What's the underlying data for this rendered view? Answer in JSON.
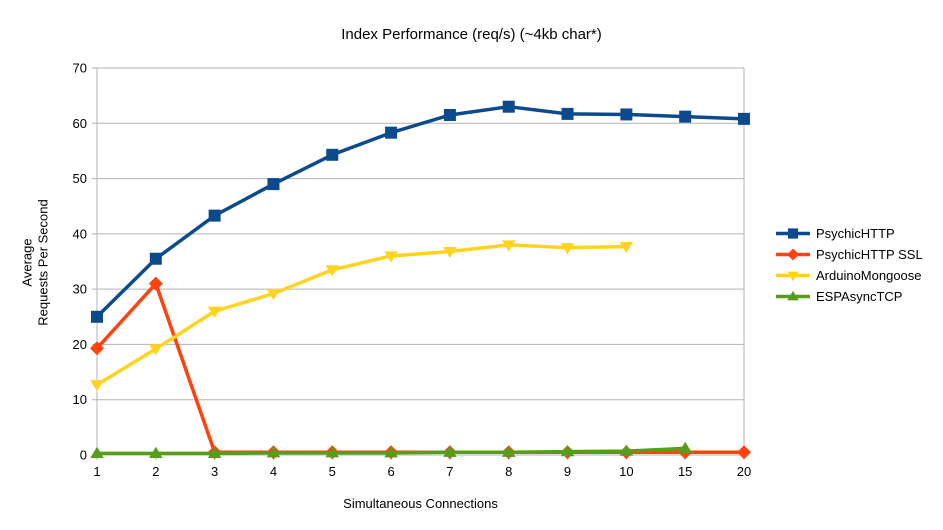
{
  "chart_data": {
    "type": "line",
    "title": "Index Performance (req/s) (~4kb char*)",
    "xlabel": "Simultaneous Connections",
    "ylabel": "Average\nRequests Per Second",
    "categories": [
      "1",
      "2",
      "3",
      "4",
      "5",
      "6",
      "7",
      "8",
      "9",
      "10",
      "15",
      "20"
    ],
    "ylim": [
      0,
      70
    ],
    "yticks": [
      0,
      10,
      20,
      30,
      40,
      50,
      60,
      70
    ],
    "grid": "horizontal",
    "gridline_color": "#b3b3b3",
    "legend_position": "right",
    "series": [
      {
        "name": "PsychicHTTP",
        "color": "#0B4A8C",
        "marker": "square",
        "values": [
          25,
          35.5,
          43.3,
          49,
          54.3,
          58.3,
          61.5,
          63,
          61.7,
          61.6,
          61.2,
          60.8
        ]
      },
      {
        "name": "PsychicHTTP SSL",
        "color": "#FF420E",
        "marker": "diamond",
        "values": [
          19.3,
          31,
          0.5,
          0.5,
          0.5,
          0.5,
          0.5,
          0.5,
          0.5,
          0.5,
          0.5,
          0.5
        ]
      },
      {
        "name": "ArduinoMongoose",
        "color": "#FFD320",
        "marker": "triangle-down",
        "values": [
          12.7,
          19.2,
          26,
          29.2,
          33.5,
          36,
          36.8,
          38,
          37.5,
          37.7,
          null,
          null
        ]
      },
      {
        "name": "ESPAsyncTCP",
        "color": "#579D1C",
        "marker": "triangle-up",
        "values": [
          0.3,
          0.3,
          0.3,
          0.4,
          0.4,
          0.4,
          0.5,
          0.5,
          0.6,
          0.7,
          1.2,
          null
        ]
      }
    ]
  }
}
